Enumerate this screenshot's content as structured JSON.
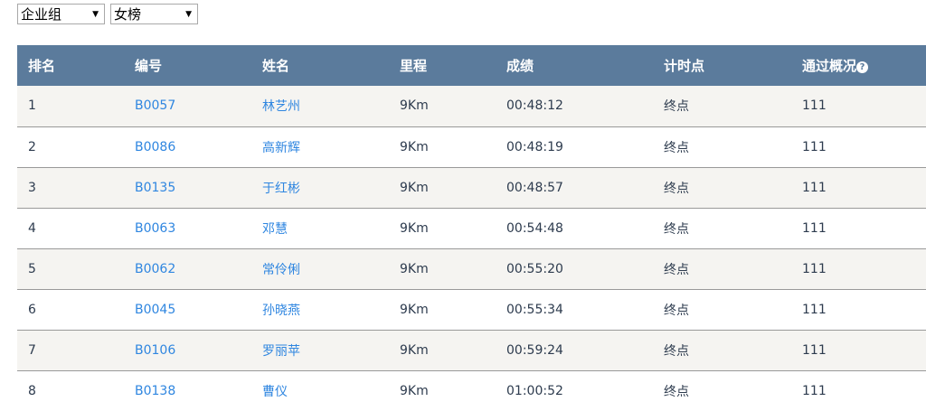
{
  "filters": {
    "group": "企业组",
    "gender": "女榜"
  },
  "columns": [
    "排名",
    "编号",
    "姓名",
    "里程",
    "成绩",
    "计时点",
    "通过概况"
  ],
  "rows": [
    {
      "rank": "1",
      "bib": "B0057",
      "name": "林艺州",
      "distance": "9Km",
      "time": "00:48:12",
      "checkpoint": "终点",
      "passage": "111"
    },
    {
      "rank": "2",
      "bib": "B0086",
      "name": "高新辉",
      "distance": "9Km",
      "time": "00:48:19",
      "checkpoint": "终点",
      "passage": "111"
    },
    {
      "rank": "3",
      "bib": "B0135",
      "name": "于红彬",
      "distance": "9Km",
      "time": "00:48:57",
      "checkpoint": "终点",
      "passage": "111"
    },
    {
      "rank": "4",
      "bib": "B0063",
      "name": "邓慧",
      "distance": "9Km",
      "time": "00:54:48",
      "checkpoint": "终点",
      "passage": "111"
    },
    {
      "rank": "5",
      "bib": "B0062",
      "name": "常伶俐",
      "distance": "9Km",
      "time": "00:55:20",
      "checkpoint": "终点",
      "passage": "111"
    },
    {
      "rank": "6",
      "bib": "B0045",
      "name": "孙晓燕",
      "distance": "9Km",
      "time": "00:55:34",
      "checkpoint": "终点",
      "passage": "111"
    },
    {
      "rank": "7",
      "bib": "B0106",
      "name": "罗丽苹",
      "distance": "9Km",
      "time": "00:59:24",
      "checkpoint": "终点",
      "passage": "111"
    },
    {
      "rank": "8",
      "bib": "B0138",
      "name": "曹仪",
      "distance": "9Km",
      "time": "01:00:52",
      "checkpoint": "终点",
      "passage": "111"
    }
  ]
}
